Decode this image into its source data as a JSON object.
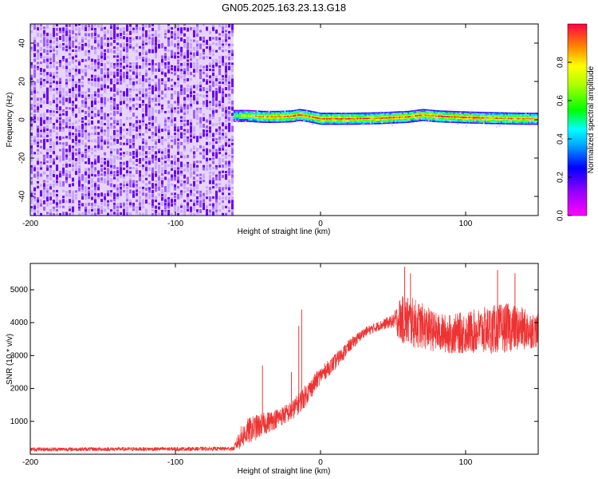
{
  "title": "GN05.2025.163.23.13.G18",
  "chart_data": [
    {
      "type": "heatmap",
      "title": "GN05.2025.163.23.13.G18",
      "xlabel": "Height of straight line (km)",
      "ylabel": "Frequency (Hz)",
      "xlim": [
        -200,
        150
      ],
      "ylim": [
        -50,
        50
      ],
      "xticks": [
        -200,
        -100,
        0,
        100
      ],
      "yticks": [
        -40,
        -20,
        0,
        20,
        40
      ],
      "noise_region_x": [
        -200,
        -60
      ],
      "noise_value": 0.3,
      "signal_line": {
        "x": [
          -60,
          -50,
          -40,
          -30,
          -20,
          -15,
          -10,
          0,
          20,
          40,
          60,
          70,
          80,
          100,
          120,
          140,
          150
        ],
        "center": [
          2,
          2,
          1.5,
          1.5,
          1.8,
          2.5,
          2,
          0.5,
          0.5,
          0.8,
          1.5,
          2.5,
          1.8,
          1.2,
          0.8,
          0.5,
          0.5
        ],
        "peak": [
          0.6,
          0.8,
          0.85,
          0.95,
          0.95,
          0.9,
          0.9,
          0.95,
          0.95,
          0.95,
          0.9,
          0.9,
          0.95,
          0.95,
          0.9,
          0.9,
          0.85
        ]
      },
      "colorbar": {
        "label": "Normalized spectral amplitude",
        "ticks": [
          0.0,
          0.2,
          0.4,
          0.6,
          0.8
        ],
        "range": [
          0,
          1
        ],
        "colormap": "rainbow"
      }
    },
    {
      "type": "line",
      "xlabel": "Height of straight line (km)",
      "ylabel": "SNR (10 * v/v)",
      "xlim": [
        -200,
        150
      ],
      "ylim": [
        0,
        5800
      ],
      "xticks": [
        -200,
        -100,
        0,
        100
      ],
      "yticks": [
        1000,
        2000,
        3000,
        4000,
        5000
      ],
      "color": "#ee3333",
      "series": [
        {
          "x": [
            -200,
            -150,
            -100,
            -60,
            -55,
            -50,
            -45,
            -40,
            -30,
            -20,
            -12,
            -5,
            0,
            10,
            20,
            30,
            40,
            50,
            55,
            60,
            70,
            80,
            90,
            100,
            110,
            120,
            130,
            140,
            150
          ],
          "values": [
            150,
            155,
            160,
            170,
            500,
            700,
            800,
            900,
            1100,
            1300,
            1700,
            2100,
            2400,
            2800,
            3300,
            3700,
            3900,
            4050,
            4100,
            4050,
            3900,
            3700,
            3650,
            3700,
            3750,
            3800,
            3850,
            3800,
            3750
          ],
          "spread": [
            60,
            60,
            60,
            60,
            350,
            400,
            400,
            350,
            300,
            300,
            350,
            300,
            250,
            250,
            200,
            150,
            150,
            200,
            700,
            800,
            700,
            600,
            600,
            650,
            700,
            750,
            750,
            650,
            500
          ]
        }
      ],
      "annotations": {
        "spikes": [
          {
            "x": -13,
            "y": 4400
          },
          {
            "x": -15,
            "y": 3900
          },
          {
            "x": -40,
            "y": 2700
          },
          {
            "x": -20,
            "y": 2500
          },
          {
            "x": 58,
            "y": 5700
          },
          {
            "x": 62,
            "y": 5500
          },
          {
            "x": 122,
            "y": 5600
          },
          {
            "x": 134,
            "y": 5500
          }
        ]
      }
    }
  ]
}
